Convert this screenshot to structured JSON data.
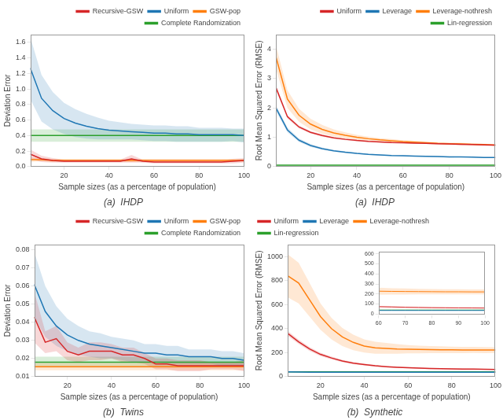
{
  "chart_data": [
    {
      "type": "line",
      "title": "(a)  IHDP",
      "xlabel": "Sample sizes (as a percentage of population)",
      "ylabel": "Deviation Error",
      "x": [
        5,
        10,
        15,
        20,
        25,
        30,
        35,
        40,
        45,
        50,
        55,
        60,
        65,
        70,
        75,
        80,
        85,
        90,
        95,
        100
      ],
      "xlim": [
        5,
        100
      ],
      "xticks": [
        20,
        40,
        60,
        80,
        100
      ],
      "ylim": [
        0.0,
        1.7
      ],
      "yticks": [
        {
          "value": 0,
          "label": "0.0"
        },
        0.2,
        0.4,
        0.6,
        0.8,
        {
          "value": 1,
          "label": "1.0"
        },
        1.2,
        1.4,
        1.6
      ],
      "grid": false,
      "legend": "upper right",
      "series": [
        {
          "name": "Recursive-GSW",
          "color": "#d62728",
          "values": [
            0.16,
            0.1,
            0.08,
            0.07,
            0.07,
            0.07,
            0.07,
            0.07,
            0.07,
            0.1,
            0.07,
            0.06,
            0.06,
            0.06,
            0.06,
            0.06,
            0.06,
            0.06,
            0.07,
            0.08
          ],
          "band": [
            0.06,
            0.04,
            0.03,
            0.02,
            0.02,
            0.02,
            0.02,
            0.02,
            0.02,
            0.05,
            0.02,
            0.02,
            0.02,
            0.02,
            0.02,
            0.02,
            0.02,
            0.02,
            0.03,
            0.03
          ]
        },
        {
          "name": "Uniform",
          "color": "#1f77b4",
          "values": [
            1.27,
            0.88,
            0.72,
            0.62,
            0.56,
            0.52,
            0.49,
            0.47,
            0.46,
            0.45,
            0.44,
            0.43,
            0.43,
            0.42,
            0.42,
            0.41,
            0.41,
            0.41,
            0.41,
            0.4
          ],
          "band": [
            0.4,
            0.3,
            0.24,
            0.2,
            0.18,
            0.16,
            0.14,
            0.12,
            0.11,
            0.1,
            0.1,
            0.1,
            0.1,
            0.1,
            0.1,
            0.09,
            0.09,
            0.09,
            0.08,
            0.09
          ]
        },
        {
          "name": "GSW-pop",
          "color": "#ff7f0e",
          "values": [
            0.09,
            0.09,
            0.08,
            0.08,
            0.08,
            0.08,
            0.08,
            0.08,
            0.08,
            0.08,
            0.08,
            0.08,
            0.08,
            0.08,
            0.08,
            0.08,
            0.08,
            0.08,
            0.08,
            0.08
          ],
          "band": [
            0.03,
            0.02,
            0.02,
            0.02,
            0.02,
            0.02,
            0.02,
            0.02,
            0.02,
            0.02,
            0.02,
            0.02,
            0.02,
            0.02,
            0.02,
            0.02,
            0.02,
            0.02,
            0.02,
            0.02
          ]
        },
        {
          "name": "Complete Randomization",
          "color": "#2ca02c",
          "values": [
            0.4,
            0.4,
            0.4,
            0.4,
            0.4,
            0.4,
            0.4,
            0.4,
            0.4,
            0.4,
            0.4,
            0.4,
            0.4,
            0.4,
            0.4,
            0.4,
            0.4,
            0.4,
            0.4,
            0.4
          ],
          "band": [
            0.08,
            0.08,
            0.08,
            0.08,
            0.08,
            0.08,
            0.08,
            0.08,
            0.08,
            0.08,
            0.08,
            0.08,
            0.08,
            0.08,
            0.08,
            0.08,
            0.08,
            0.08,
            0.08,
            0.08
          ]
        }
      ]
    },
    {
      "type": "line",
      "title": "(a)  IHDP",
      "xlabel": "Sample sizes (as a percentage of population)",
      "ylabel": "Root Mean Squared Error (RMSE)",
      "x": [
        5,
        10,
        15,
        20,
        25,
        30,
        35,
        40,
        45,
        50,
        55,
        60,
        65,
        70,
        75,
        80,
        85,
        90,
        95,
        100
      ],
      "xlim": [
        5,
        100
      ],
      "xticks": [
        20,
        40,
        60,
        80,
        100
      ],
      "ylim": [
        0.0,
        4.5
      ],
      "yticks": [
        0,
        1,
        2,
        3,
        4
      ],
      "grid": false,
      "legend": "upper right",
      "series": [
        {
          "name": "Uniform",
          "color": "#d62728",
          "values": [
            2.7,
            1.7,
            1.35,
            1.17,
            1.06,
            0.98,
            0.93,
            0.89,
            0.86,
            0.84,
            0.82,
            0.81,
            0.8,
            0.79,
            0.78,
            0.77,
            0.76,
            0.75,
            0.74,
            0.73
          ],
          "band": [
            0.08,
            0.06,
            0.05,
            0.04,
            0.04,
            0.03,
            0.03,
            0.03,
            0.02,
            0.02,
            0.02,
            0.02,
            0.02,
            0.02,
            0.02,
            0.02,
            0.02,
            0.02,
            0.02,
            0.02
          ]
        },
        {
          "name": "Leverage",
          "color": "#1f77b4",
          "values": [
            2.0,
            1.25,
            0.9,
            0.72,
            0.61,
            0.54,
            0.49,
            0.45,
            0.42,
            0.4,
            0.38,
            0.37,
            0.36,
            0.35,
            0.34,
            0.33,
            0.33,
            0.32,
            0.31,
            0.31
          ],
          "band": [
            0.1,
            0.08,
            0.06,
            0.05,
            0.04,
            0.03,
            0.03,
            0.02,
            0.02,
            0.02,
            0.02,
            0.02,
            0.02,
            0.02,
            0.02,
            0.02,
            0.01,
            0.01,
            0.01,
            0.01
          ]
        },
        {
          "name": "Leverage-nothresh",
          "color": "#ff7f0e",
          "values": [
            3.75,
            2.3,
            1.75,
            1.45,
            1.27,
            1.15,
            1.07,
            1.0,
            0.95,
            0.91,
            0.88,
            0.85,
            0.83,
            0.81,
            0.79,
            0.78,
            0.77,
            0.76,
            0.75,
            0.73
          ],
          "band": [
            0.4,
            0.3,
            0.22,
            0.18,
            0.15,
            0.12,
            0.1,
            0.08,
            0.07,
            0.06,
            0.06,
            0.05,
            0.05,
            0.04,
            0.04,
            0.04,
            0.04,
            0.03,
            0.03,
            0.03
          ]
        },
        {
          "name": "Lin-regression",
          "color": "#2ca02c",
          "values": [
            0.05,
            0.05,
            0.05,
            0.05,
            0.05,
            0.05,
            0.05,
            0.05,
            0.05,
            0.05,
            0.05,
            0.05,
            0.05,
            0.05,
            0.05,
            0.05,
            0.05,
            0.05,
            0.05,
            0.05
          ],
          "band": [
            0.01,
            0.01,
            0.01,
            0.01,
            0.01,
            0.01,
            0.01,
            0.01,
            0.01,
            0.01,
            0.01,
            0.01,
            0.01,
            0.01,
            0.01,
            0.01,
            0.01,
            0.01,
            0.01,
            0.01
          ]
        }
      ]
    },
    {
      "type": "line",
      "title": "(b)  Twins",
      "xlabel": "Sample sizes (as a percentage of population)",
      "ylabel": "Deviation Error",
      "x": [
        5,
        10,
        15,
        20,
        25,
        30,
        35,
        40,
        45,
        50,
        55,
        60,
        65,
        70,
        75,
        80,
        85,
        90,
        95,
        100
      ],
      "xlim": [
        5,
        100
      ],
      "xticks": [
        20,
        40,
        60,
        80,
        100
      ],
      "ylim": [
        0.01,
        0.083
      ],
      "yticks": [
        0.01,
        0.02,
        0.03,
        0.04,
        0.05,
        0.06,
        0.07,
        0.08
      ],
      "grid": false,
      "legend": "upper right",
      "series": [
        {
          "name": "Recursive-GSW",
          "color": "#d62728",
          "values": [
            0.043,
            0.029,
            0.031,
            0.024,
            0.022,
            0.024,
            0.024,
            0.024,
            0.022,
            0.022,
            0.02,
            0.017,
            0.017,
            0.016,
            0.016,
            0.016,
            0.016,
            0.016,
            0.016,
            0.016
          ],
          "band": [
            0.014,
            0.006,
            0.007,
            0.005,
            0.004,
            0.005,
            0.005,
            0.004,
            0.004,
            0.004,
            0.003,
            0.003,
            0.003,
            0.003,
            0.003,
            0.003,
            0.002,
            0.002,
            0.002,
            0.003
          ]
        },
        {
          "name": "Uniform",
          "color": "#1f77b4",
          "values": [
            0.061,
            0.046,
            0.038,
            0.033,
            0.03,
            0.028,
            0.027,
            0.026,
            0.025,
            0.024,
            0.023,
            0.023,
            0.022,
            0.022,
            0.021,
            0.021,
            0.021,
            0.02,
            0.02,
            0.019
          ],
          "band": [
            0.018,
            0.014,
            0.011,
            0.009,
            0.008,
            0.007,
            0.007,
            0.006,
            0.006,
            0.006,
            0.005,
            0.005,
            0.005,
            0.005,
            0.004,
            0.004,
            0.004,
            0.004,
            0.004,
            0.004
          ]
        },
        {
          "name": "GSW-pop",
          "color": "#ff7f0e",
          "values": [
            0.0155,
            0.0155,
            0.0155,
            0.0155,
            0.0155,
            0.0155,
            0.0155,
            0.0155,
            0.0155,
            0.0155,
            0.0155,
            0.0155,
            0.0155,
            0.0155,
            0.0155,
            0.0155,
            0.0155,
            0.0155,
            0.0155,
            0.0155
          ],
          "band": [
            0.002,
            0.002,
            0.002,
            0.002,
            0.002,
            0.002,
            0.002,
            0.002,
            0.002,
            0.002,
            0.002,
            0.002,
            0.002,
            0.002,
            0.002,
            0.002,
            0.002,
            0.002,
            0.002,
            0.002
          ]
        },
        {
          "name": "Complete Randomization",
          "color": "#2ca02c",
          "values": [
            0.018,
            0.018,
            0.018,
            0.018,
            0.018,
            0.018,
            0.018,
            0.018,
            0.018,
            0.018,
            0.018,
            0.018,
            0.018,
            0.018,
            0.018,
            0.018,
            0.018,
            0.018,
            0.018,
            0.018
          ],
          "band": [
            0.003,
            0.003,
            0.003,
            0.003,
            0.003,
            0.003,
            0.003,
            0.003,
            0.003,
            0.003,
            0.003,
            0.003,
            0.003,
            0.003,
            0.003,
            0.003,
            0.003,
            0.003,
            0.003,
            0.003
          ]
        }
      ]
    },
    {
      "type": "line",
      "title": "(b)  Synthetic",
      "xlabel": "Sample sizes (as a percentage of population)",
      "ylabel": "Root Mean Squared Error (RMSE)",
      "x": [
        5,
        10,
        15,
        20,
        25,
        30,
        35,
        40,
        45,
        50,
        55,
        60,
        65,
        70,
        75,
        80,
        85,
        90,
        95,
        100
      ],
      "xlim": [
        5,
        100
      ],
      "xticks": [
        20,
        40,
        60,
        80,
        100
      ],
      "ylim": [
        0,
        1100
      ],
      "yticks": [
        0,
        200,
        400,
        600,
        800,
        1000
      ],
      "grid": false,
      "legend": "upper left",
      "series": [
        {
          "name": "Uniform",
          "color": "#d62728",
          "values": [
            360,
            290,
            230,
            185,
            155,
            130,
            112,
            100,
            90,
            83,
            78,
            74,
            71,
            68,
            66,
            64,
            63,
            62,
            61,
            60
          ],
          "band": [
            20,
            18,
            16,
            14,
            12,
            10,
            9,
            8,
            7,
            6,
            6,
            5,
            5,
            5,
            4,
            4,
            4,
            4,
            3,
            3
          ]
        },
        {
          "name": "Leverage",
          "color": "#1f77b4",
          "values": [
            40,
            38,
            37,
            36,
            36,
            36,
            36,
            36,
            36,
            36,
            36,
            36,
            36,
            36,
            36,
            36,
            36,
            36,
            36,
            36
          ],
          "band": [
            5,
            4,
            4,
            3,
            3,
            3,
            3,
            3,
            3,
            3,
            3,
            3,
            3,
            3,
            3,
            3,
            3,
            3,
            3,
            3
          ]
        },
        {
          "name": "Leverage-nothresh",
          "color": "#ff7f0e",
          "values": [
            840,
            780,
            640,
            500,
            400,
            330,
            285,
            255,
            240,
            235,
            230,
            228,
            226,
            225,
            224,
            223,
            222,
            222,
            221,
            221
          ],
          "band": [
            180,
            170,
            140,
            110,
            90,
            75,
            65,
            55,
            50,
            45,
            40,
            35,
            32,
            30,
            28,
            27,
            26,
            25,
            25,
            24
          ]
        },
        {
          "name": "Lin-regression",
          "color": "#2ca02c",
          "values": [
            40,
            40,
            40,
            40,
            40,
            40,
            40,
            40,
            40,
            40,
            40,
            40,
            40,
            40,
            40,
            40,
            40,
            40,
            40,
            40
          ],
          "band": [
            5,
            4,
            4,
            3,
            3,
            3,
            3,
            3,
            3,
            3,
            3,
            3,
            3,
            3,
            3,
            3,
            3,
            3,
            3,
            3
          ]
        }
      ]
    },
    {
      "type": "line",
      "x": [
        60,
        65,
        70,
        75,
        80,
        85,
        90,
        95,
        100
      ],
      "xlim": [
        60,
        100
      ],
      "xticks": [
        60,
        70,
        80,
        90,
        100
      ],
      "ylim": [
        -10,
        620
      ],
      "yticks": [
        0,
        100,
        200,
        300,
        400,
        500,
        600
      ],
      "grid": false,
      "legend": false,
      "series": [
        {
          "color": "#d62728",
          "values": [
            74,
            71,
            68,
            66,
            64,
            63,
            62,
            61,
            60
          ],
          "band": [
            5,
            5,
            5,
            4,
            4,
            4,
            4,
            3,
            3
          ]
        },
        {
          "color": "#1f77b4",
          "values": [
            36,
            36,
            36,
            36,
            36,
            36,
            36,
            36,
            36
          ],
          "band": [
            3,
            3,
            3,
            3,
            3,
            3,
            3,
            3,
            3
          ]
        },
        {
          "color": "#ff7f0e",
          "values": [
            228,
            226,
            225,
            224,
            223,
            222,
            222,
            221,
            221
          ],
          "band": [
            35,
            32,
            30,
            28,
            27,
            26,
            25,
            25,
            24
          ]
        },
        {
          "color": "#2ca02c",
          "values": [
            40,
            40,
            40,
            40,
            40,
            40,
            40,
            40,
            40
          ],
          "band": [
            3,
            3,
            3,
            3,
            3,
            3,
            3,
            3,
            3
          ]
        }
      ]
    }
  ]
}
